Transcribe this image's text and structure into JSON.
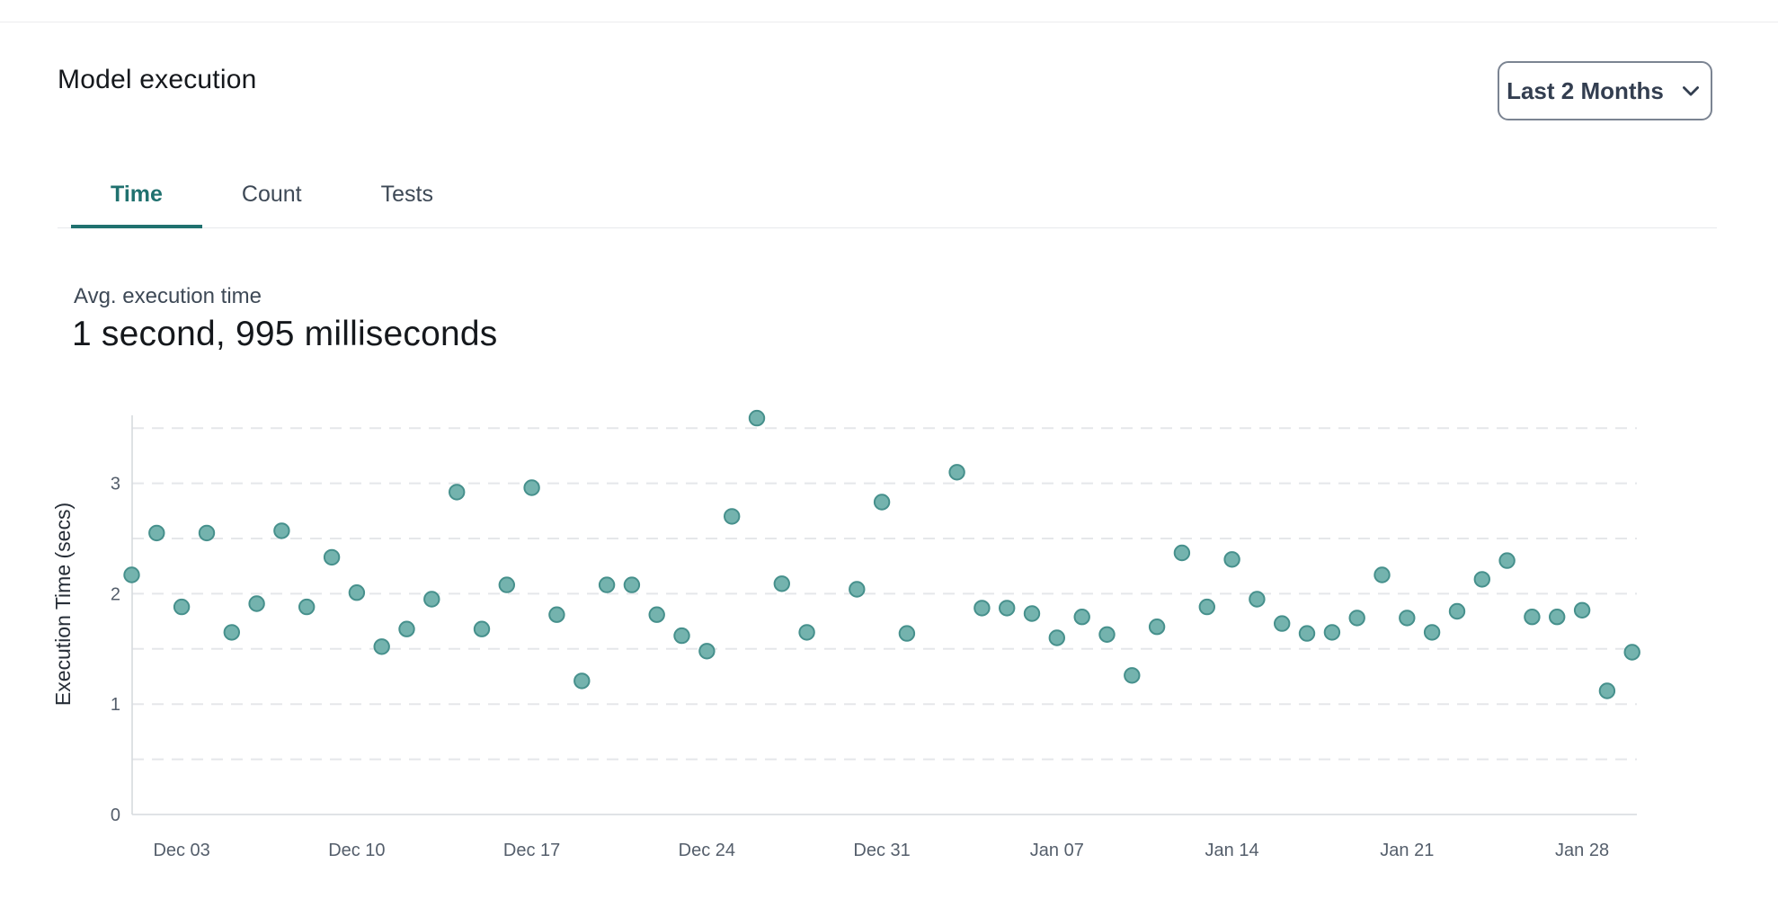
{
  "header": {
    "title": "Model execution",
    "range_selector_label": "Last 2 Months"
  },
  "tabs": [
    {
      "label": "Time",
      "active": true
    },
    {
      "label": "Count",
      "active": false
    },
    {
      "label": "Tests",
      "active": false
    }
  ],
  "metric": {
    "label": "Avg. execution time",
    "value": "1 second, 995 milliseconds"
  },
  "chart_data": {
    "type": "scatter",
    "title": "",
    "xlabel": "",
    "ylabel": "Execution Time (secs)",
    "ylim": [
      0,
      3.6
    ],
    "y_ticks": [
      0,
      1,
      2,
      3
    ],
    "gridlines": [
      0.5,
      1,
      1.5,
      2,
      2.5,
      3,
      3.5
    ],
    "grid_style": "dashed",
    "legend": "none",
    "x_day0_date": "Dec 01",
    "x_ticks": [
      {
        "day": 2,
        "label": "Dec 03"
      },
      {
        "day": 9,
        "label": "Dec 10"
      },
      {
        "day": 16,
        "label": "Dec 17"
      },
      {
        "day": 23,
        "label": "Dec 24"
      },
      {
        "day": 30,
        "label": "Dec 31"
      },
      {
        "day": 37,
        "label": "Jan 07"
      },
      {
        "day": 44,
        "label": "Jan 14"
      },
      {
        "day": 51,
        "label": "Jan 21"
      },
      {
        "day": 58,
        "label": "Jan 28"
      }
    ],
    "colors": {
      "point_fill": "#74b3ae",
      "point_stroke": "#46908c",
      "accent": "#20716f",
      "gridline": "#e5e7ea",
      "axis_line": "#d6dade",
      "tick_label": "#545e6b",
      "axis_title": "#262d36"
    },
    "points": [
      {
        "day": 0,
        "date": "Dec 01",
        "value": 2.17
      },
      {
        "day": 1,
        "date": "Dec 02",
        "value": 2.55
      },
      {
        "day": 2,
        "date": "Dec 03",
        "value": 1.88
      },
      {
        "day": 3,
        "date": "Dec 04",
        "value": 2.55
      },
      {
        "day": 4,
        "date": "Dec 05",
        "value": 1.65
      },
      {
        "day": 5,
        "date": "Dec 06",
        "value": 1.91
      },
      {
        "day": 6,
        "date": "Dec 07",
        "value": 2.57
      },
      {
        "day": 7,
        "date": "Dec 08",
        "value": 1.88
      },
      {
        "day": 8,
        "date": "Dec 09",
        "value": 2.33
      },
      {
        "day": 9,
        "date": "Dec 10",
        "value": 2.01
      },
      {
        "day": 10,
        "date": "Dec 11",
        "value": 1.52
      },
      {
        "day": 11,
        "date": "Dec 12",
        "value": 1.68
      },
      {
        "day": 12,
        "date": "Dec 13",
        "value": 1.95
      },
      {
        "day": 13,
        "date": "Dec 14",
        "value": 2.92
      },
      {
        "day": 14,
        "date": "Dec 15",
        "value": 1.68
      },
      {
        "day": 15,
        "date": "Dec 16",
        "value": 2.08
      },
      {
        "day": 16,
        "date": "Dec 17",
        "value": 2.96
      },
      {
        "day": 17,
        "date": "Dec 18",
        "value": 1.81
      },
      {
        "day": 18,
        "date": "Dec 19",
        "value": 1.21
      },
      {
        "day": 19,
        "date": "Dec 20",
        "value": 2.08
      },
      {
        "day": 20,
        "date": "Dec 21",
        "value": 2.08
      },
      {
        "day": 21,
        "date": "Dec 22",
        "value": 1.81
      },
      {
        "day": 22,
        "date": "Dec 23",
        "value": 1.62
      },
      {
        "day": 23,
        "date": "Dec 24",
        "value": 1.48
      },
      {
        "day": 24,
        "date": "Dec 25",
        "value": 2.7
      },
      {
        "day": 25,
        "date": "Dec 26",
        "value": 3.59
      },
      {
        "day": 26,
        "date": "Dec 27",
        "value": 2.09
      },
      {
        "day": 27,
        "date": "Dec 28",
        "value": 1.65
      },
      {
        "day": 29,
        "date": "Dec 30",
        "value": 2.04
      },
      {
        "day": 30,
        "date": "Dec 31",
        "value": 2.83
      },
      {
        "day": 31,
        "date": "Jan 01",
        "value": 1.64
      },
      {
        "day": 33,
        "date": "Jan 03",
        "value": 3.1
      },
      {
        "day": 34,
        "date": "Jan 04",
        "value": 1.87
      },
      {
        "day": 35,
        "date": "Jan 05",
        "value": 1.87
      },
      {
        "day": 36,
        "date": "Jan 06",
        "value": 1.82
      },
      {
        "day": 37,
        "date": "Jan 07",
        "value": 1.6
      },
      {
        "day": 38,
        "date": "Jan 08",
        "value": 1.79
      },
      {
        "day": 39,
        "date": "Jan 09",
        "value": 1.63
      },
      {
        "day": 40,
        "date": "Jan 10",
        "value": 1.26
      },
      {
        "day": 41,
        "date": "Jan 11",
        "value": 1.7
      },
      {
        "day": 42,
        "date": "Jan 12",
        "value": 2.37
      },
      {
        "day": 43,
        "date": "Jan 13",
        "value": 1.88
      },
      {
        "day": 44,
        "date": "Jan 14",
        "value": 2.31
      },
      {
        "day": 45,
        "date": "Jan 15",
        "value": 1.95
      },
      {
        "day": 46,
        "date": "Jan 16",
        "value": 1.73
      },
      {
        "day": 47,
        "date": "Jan 17",
        "value": 1.64
      },
      {
        "day": 48,
        "date": "Jan 18",
        "value": 1.65
      },
      {
        "day": 49,
        "date": "Jan 19",
        "value": 1.78
      },
      {
        "day": 50,
        "date": "Jan 20",
        "value": 2.17
      },
      {
        "day": 51,
        "date": "Jan 21",
        "value": 1.78
      },
      {
        "day": 52,
        "date": "Jan 22",
        "value": 1.65
      },
      {
        "day": 53,
        "date": "Jan 23",
        "value": 1.84
      },
      {
        "day": 54,
        "date": "Jan 24",
        "value": 2.13
      },
      {
        "day": 55,
        "date": "Jan 25",
        "value": 2.3
      },
      {
        "day": 56,
        "date": "Jan 26",
        "value": 1.79
      },
      {
        "day": 57,
        "date": "Jan 27",
        "value": 1.79
      },
      {
        "day": 58,
        "date": "Jan 28",
        "value": 1.85
      },
      {
        "day": 59,
        "date": "Jan 29",
        "value": 1.12
      },
      {
        "day": 60,
        "date": "Jan 30",
        "value": 1.47
      }
    ]
  }
}
